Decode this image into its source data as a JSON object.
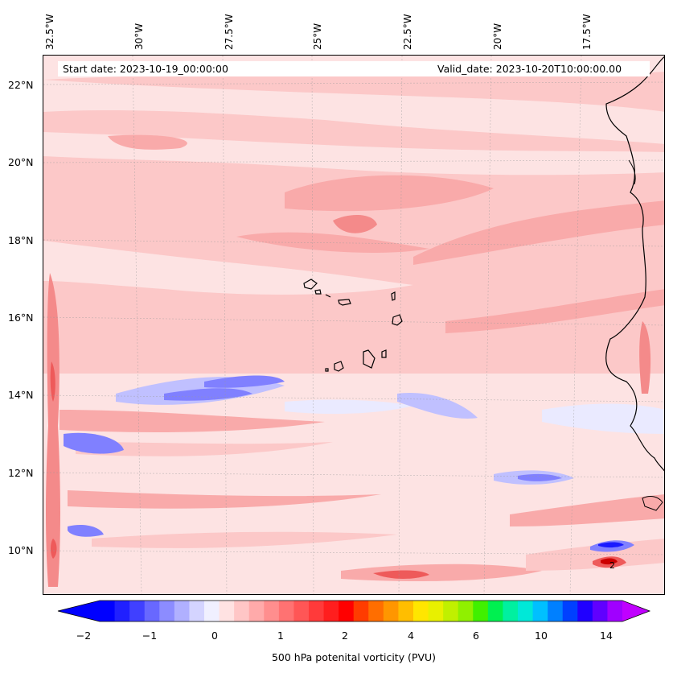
{
  "header": {
    "start_date": "Start date: 2023-10-19_00:00:00",
    "valid_date": "Valid_date: 2023-10-20T10:00:00.00"
  },
  "axes": {
    "longitude_labels": [
      "32.5°W",
      "30°W",
      "27.5°W",
      "25°W",
      "22.5°W",
      "20°W",
      "17.5°W"
    ],
    "latitude_labels": [
      "22°N",
      "20°N",
      "18°N",
      "16°N",
      "14°N",
      "12°N",
      "10°N"
    ]
  },
  "map": {
    "contour_label": "2",
    "colors": {
      "light_pink": "#fde3e3",
      "pink": "#fcc8c8",
      "salmon": "#f9aaaa",
      "rose": "#f48a8a",
      "red": "#ee5a5a",
      "lavender": "#eaeaff",
      "periwinkle": "#c0c0ff",
      "blue": "#8080ff",
      "deep_blue": "#1a1aff"
    }
  },
  "colorbar": {
    "title": "500 hPa potenital vorticity (PVU)",
    "ticks": [
      "−2",
      "−1",
      "0",
      "1",
      "2",
      "4",
      "6",
      "10",
      "14"
    ],
    "colors": [
      "#0000ff",
      "#2020ff",
      "#4040ff",
      "#6868ff",
      "#8c8cff",
      "#b0b0ff",
      "#d4d4ff",
      "#f0f0ff",
      "#ffe2e2",
      "#ffc6c6",
      "#ffaaaa",
      "#ff8e8e",
      "#ff7272",
      "#ff5656",
      "#ff3a3a",
      "#ff1e1e",
      "#ff0000",
      "#ff3c00",
      "#ff6e00",
      "#ff9600",
      "#ffbe00",
      "#ffe600",
      "#e8f000",
      "#c0f000",
      "#90f000",
      "#40f000",
      "#00f050",
      "#00f0a0",
      "#00e8d8",
      "#00c0ff",
      "#0080ff",
      "#0040ff",
      "#2000ff",
      "#6000ff",
      "#a000ff"
    ],
    "under_color": "#0000ff",
    "over_color": "#c000ff"
  }
}
